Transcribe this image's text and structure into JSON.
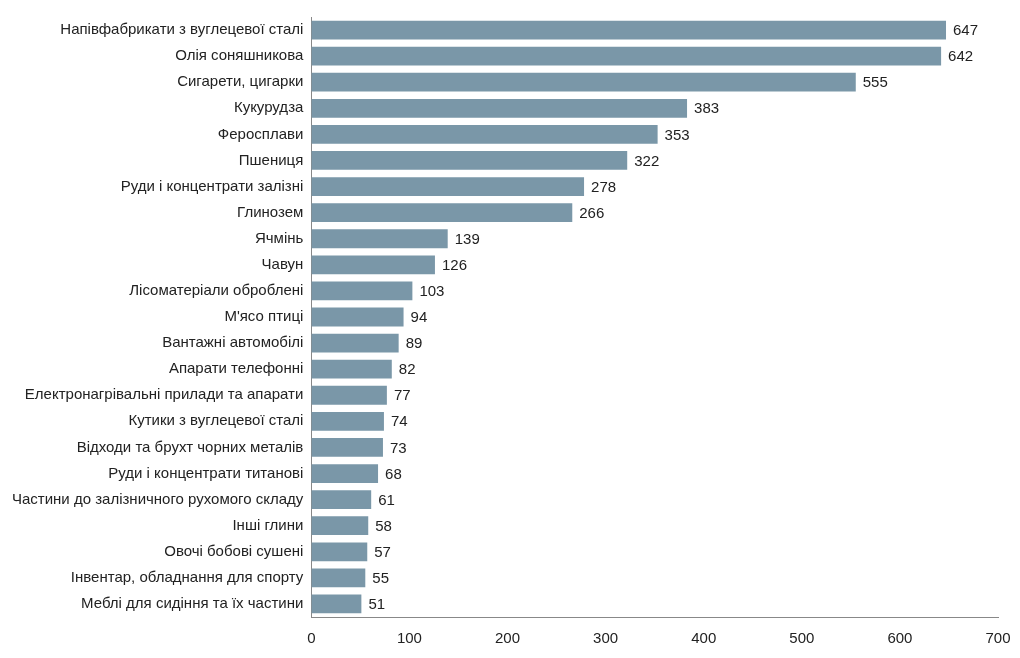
{
  "chart_data": {
    "type": "bar",
    "orientation": "horizontal",
    "categories": [
      "Напівфабрикати з вуглецевої сталі",
      "Олія соняшникова",
      "Сигарети, цигарки",
      "Кукурудза",
      "Феросплави",
      "Пшениця",
      "Руди і концентрати залізні",
      "Глинозем",
      "Ячмінь",
      "Чавун",
      "Лісоматеріали оброблені",
      "М'ясо птиці",
      "Вантажні автомобілі",
      "Апарати телефонні",
      "Електронагрівальні прилади та апарати",
      "Кутики з вуглецевої сталі",
      "Відходи та брухт чорних металів",
      "Руди і концентрати титанові",
      "Частини до залізничного рухомого складу",
      "Інші глини",
      "Овочі бобові сушені",
      "Інвентар, обладнання для спорту",
      "Меблі для сидіння та їх частини"
    ],
    "values": [
      647,
      642,
      555,
      383,
      353,
      322,
      278,
      266,
      139,
      126,
      103,
      94,
      89,
      82,
      77,
      74,
      73,
      68,
      61,
      58,
      57,
      55,
      51
    ],
    "color": "#7a97a8",
    "xlim": [
      0,
      700
    ],
    "xticks": [
      0,
      100,
      200,
      300,
      400,
      500,
      600,
      700
    ],
    "grid": false,
    "legend": false,
    "data_labels": true
  }
}
